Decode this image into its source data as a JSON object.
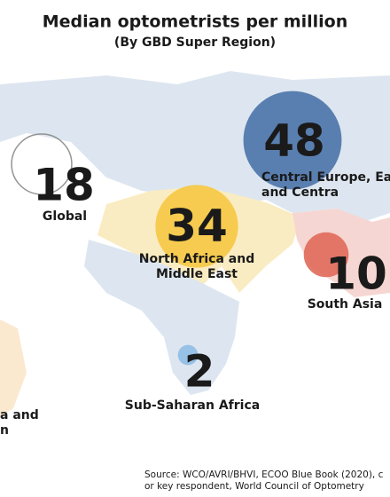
{
  "title": "Median optometrists per million",
  "subtitle": "(By GBD Super Region)",
  "regions": [
    {
      "value": 48,
      "color": "#4a73a8",
      "label": [
        "Central Europe, Eas",
        "and Centra"
      ]
    },
    {
      "value": 34,
      "color": "#f5c842",
      "label": [
        "North Africa and",
        "Middle East"
      ]
    },
    {
      "value": 18,
      "color": "none",
      "label": [
        "Global"
      ]
    },
    {
      "value": 10,
      "color": "#e06a5a",
      "label": [
        "South Asia"
      ]
    },
    {
      "value": 2,
      "color": "#8fbde6",
      "label": [
        "Sub-Saharan Africa"
      ]
    },
    {
      "label": [
        "a and",
        "n"
      ]
    }
  ],
  "source": [
    "Source: WCO/AVRI/BHVI, ECOO Blue Book (2020), c",
    "or key respondent, World Council of Optometry"
  ]
}
